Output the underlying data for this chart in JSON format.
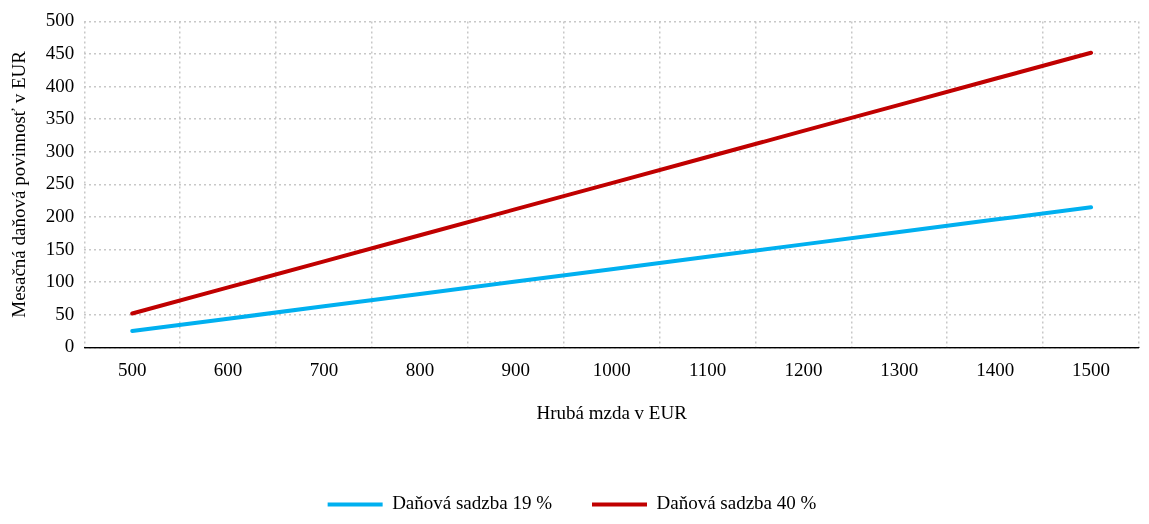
{
  "chart_data": {
    "type": "line",
    "xlabel": "Hrubá mzda v EUR",
    "ylabel": "Mesačná daňová povinnosť v EUR",
    "categories": [
      "500",
      "600",
      "700",
      "800",
      "900",
      "1000",
      "1100",
      "1200",
      "1300",
      "1400",
      "1500"
    ],
    "series": [
      {
        "name": "Daňová sadzba 19 %",
        "color": "#00b0f0",
        "values": [
          25,
          44,
          63,
          82,
          101,
          120,
          139,
          158,
          177,
          196,
          215
        ]
      },
      {
        "name": "Daňová sadzba 40 %",
        "color": "#c00000",
        "values": [
          52,
          92,
          132,
          172,
          212,
          252,
          292,
          332,
          372,
          412,
          452
        ]
      }
    ],
    "ylim": [
      0,
      500
    ],
    "yticks": [
      0,
      50,
      100,
      150,
      200,
      250,
      300,
      350,
      400,
      450,
      500
    ],
    "grid": true,
    "legend": "bottom",
    "marker": "none",
    "line_style": "solid"
  }
}
